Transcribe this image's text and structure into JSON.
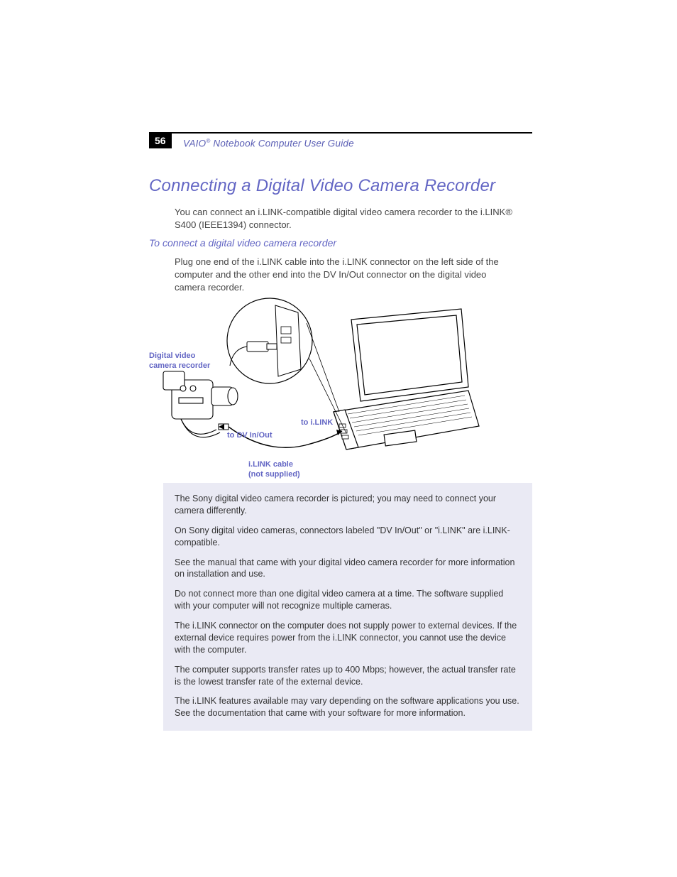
{
  "colors": {
    "accent": "#6366c4",
    "accent_dark": "#5b5fb5",
    "rule": "#000000",
    "body_text": "#444444",
    "note_bg": "#eaeaf4",
    "note_text": "#333333",
    "page_bg": "#ffffff",
    "pagenum_bg": "#000000",
    "pagenum_fg": "#ffffff"
  },
  "header": {
    "page_number": "56",
    "running_title_prefix": "VAIO",
    "running_title_reg": "®",
    "running_title_rest": " Notebook Computer User Guide"
  },
  "title": "Connecting a Digital Video Camera Recorder",
  "intro": "You can connect an i.LINK-compatible digital video camera recorder to the i.LINK® S400  (IEEE1394) connector.",
  "subhead": "To connect a digital video camera recorder",
  "step": "Plug one end of the i.LINK cable into the i.LINK connector on the left side of the computer and the other end into the DV In/Out connector on the digital video camera recorder.",
  "diagram": {
    "labels": {
      "camera": "Digital video\ncamera recorder",
      "to_ilink": "to i.LINK",
      "to_dv": "to DV In/Out",
      "cable": "i.LINK cable\n(not supplied)"
    }
  },
  "notes": [
    "The Sony digital video camera recorder is pictured; you may need to connect your camera differently.",
    "On Sony digital video cameras, connectors labeled \"DV In/Out\" or \"i.LINK\" are i.LINK-compatible.",
    "See the manual that came with your digital video camera recorder for more information on installation and use.",
    "Do not connect more than one digital video camera at a time. The software supplied with your computer will not recognize multiple cameras.",
    "The i.LINK connector on the computer does not supply power to external devices. If the external device requires power from the i.LINK connector, you cannot use the device with the computer.",
    "The computer supports transfer rates up to 400 Mbps; however, the actual transfer rate is the lowest transfer rate of the external device.",
    "The i.LINK features available may vary depending on the software applications you use. See the documentation that came with your software for more information."
  ]
}
